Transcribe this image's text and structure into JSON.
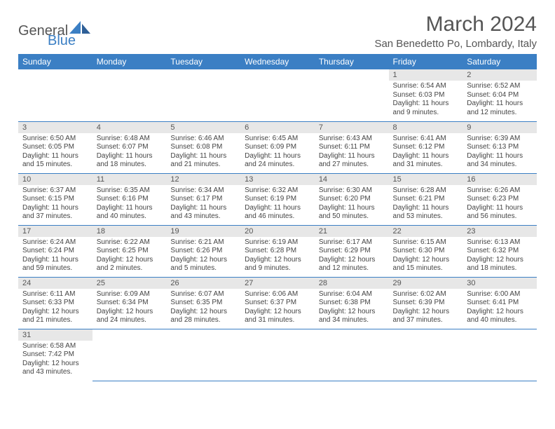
{
  "brand": {
    "name_general": "General",
    "name_blue": "Blue"
  },
  "title": "March 2024",
  "location": "San Benedetto Po, Lombardy, Italy",
  "colors": {
    "header_bg": "#3b7fc4",
    "header_text": "#ffffff",
    "daynum_bg": "#e7e7e7",
    "row_border": "#3b7fc4",
    "text": "#444444"
  },
  "weekdays": [
    "Sunday",
    "Monday",
    "Tuesday",
    "Wednesday",
    "Thursday",
    "Friday",
    "Saturday"
  ],
  "leading_blanks": 5,
  "days": [
    {
      "n": "1",
      "sunrise": "Sunrise: 6:54 AM",
      "sunset": "Sunset: 6:03 PM",
      "daylight": "Daylight: 11 hours and 9 minutes."
    },
    {
      "n": "2",
      "sunrise": "Sunrise: 6:52 AM",
      "sunset": "Sunset: 6:04 PM",
      "daylight": "Daylight: 11 hours and 12 minutes."
    },
    {
      "n": "3",
      "sunrise": "Sunrise: 6:50 AM",
      "sunset": "Sunset: 6:05 PM",
      "daylight": "Daylight: 11 hours and 15 minutes."
    },
    {
      "n": "4",
      "sunrise": "Sunrise: 6:48 AM",
      "sunset": "Sunset: 6:07 PM",
      "daylight": "Daylight: 11 hours and 18 minutes."
    },
    {
      "n": "5",
      "sunrise": "Sunrise: 6:46 AM",
      "sunset": "Sunset: 6:08 PM",
      "daylight": "Daylight: 11 hours and 21 minutes."
    },
    {
      "n": "6",
      "sunrise": "Sunrise: 6:45 AM",
      "sunset": "Sunset: 6:09 PM",
      "daylight": "Daylight: 11 hours and 24 minutes."
    },
    {
      "n": "7",
      "sunrise": "Sunrise: 6:43 AM",
      "sunset": "Sunset: 6:11 PM",
      "daylight": "Daylight: 11 hours and 27 minutes."
    },
    {
      "n": "8",
      "sunrise": "Sunrise: 6:41 AM",
      "sunset": "Sunset: 6:12 PM",
      "daylight": "Daylight: 11 hours and 31 minutes."
    },
    {
      "n": "9",
      "sunrise": "Sunrise: 6:39 AM",
      "sunset": "Sunset: 6:13 PM",
      "daylight": "Daylight: 11 hours and 34 minutes."
    },
    {
      "n": "10",
      "sunrise": "Sunrise: 6:37 AM",
      "sunset": "Sunset: 6:15 PM",
      "daylight": "Daylight: 11 hours and 37 minutes."
    },
    {
      "n": "11",
      "sunrise": "Sunrise: 6:35 AM",
      "sunset": "Sunset: 6:16 PM",
      "daylight": "Daylight: 11 hours and 40 minutes."
    },
    {
      "n": "12",
      "sunrise": "Sunrise: 6:34 AM",
      "sunset": "Sunset: 6:17 PM",
      "daylight": "Daylight: 11 hours and 43 minutes."
    },
    {
      "n": "13",
      "sunrise": "Sunrise: 6:32 AM",
      "sunset": "Sunset: 6:19 PM",
      "daylight": "Daylight: 11 hours and 46 minutes."
    },
    {
      "n": "14",
      "sunrise": "Sunrise: 6:30 AM",
      "sunset": "Sunset: 6:20 PM",
      "daylight": "Daylight: 11 hours and 50 minutes."
    },
    {
      "n": "15",
      "sunrise": "Sunrise: 6:28 AM",
      "sunset": "Sunset: 6:21 PM",
      "daylight": "Daylight: 11 hours and 53 minutes."
    },
    {
      "n": "16",
      "sunrise": "Sunrise: 6:26 AM",
      "sunset": "Sunset: 6:23 PM",
      "daylight": "Daylight: 11 hours and 56 minutes."
    },
    {
      "n": "17",
      "sunrise": "Sunrise: 6:24 AM",
      "sunset": "Sunset: 6:24 PM",
      "daylight": "Daylight: 11 hours and 59 minutes."
    },
    {
      "n": "18",
      "sunrise": "Sunrise: 6:22 AM",
      "sunset": "Sunset: 6:25 PM",
      "daylight": "Daylight: 12 hours and 2 minutes."
    },
    {
      "n": "19",
      "sunrise": "Sunrise: 6:21 AM",
      "sunset": "Sunset: 6:26 PM",
      "daylight": "Daylight: 12 hours and 5 minutes."
    },
    {
      "n": "20",
      "sunrise": "Sunrise: 6:19 AM",
      "sunset": "Sunset: 6:28 PM",
      "daylight": "Daylight: 12 hours and 9 minutes."
    },
    {
      "n": "21",
      "sunrise": "Sunrise: 6:17 AM",
      "sunset": "Sunset: 6:29 PM",
      "daylight": "Daylight: 12 hours and 12 minutes."
    },
    {
      "n": "22",
      "sunrise": "Sunrise: 6:15 AM",
      "sunset": "Sunset: 6:30 PM",
      "daylight": "Daylight: 12 hours and 15 minutes."
    },
    {
      "n": "23",
      "sunrise": "Sunrise: 6:13 AM",
      "sunset": "Sunset: 6:32 PM",
      "daylight": "Daylight: 12 hours and 18 minutes."
    },
    {
      "n": "24",
      "sunrise": "Sunrise: 6:11 AM",
      "sunset": "Sunset: 6:33 PM",
      "daylight": "Daylight: 12 hours and 21 minutes."
    },
    {
      "n": "25",
      "sunrise": "Sunrise: 6:09 AM",
      "sunset": "Sunset: 6:34 PM",
      "daylight": "Daylight: 12 hours and 24 minutes."
    },
    {
      "n": "26",
      "sunrise": "Sunrise: 6:07 AM",
      "sunset": "Sunset: 6:35 PM",
      "daylight": "Daylight: 12 hours and 28 minutes."
    },
    {
      "n": "27",
      "sunrise": "Sunrise: 6:06 AM",
      "sunset": "Sunset: 6:37 PM",
      "daylight": "Daylight: 12 hours and 31 minutes."
    },
    {
      "n": "28",
      "sunrise": "Sunrise: 6:04 AM",
      "sunset": "Sunset: 6:38 PM",
      "daylight": "Daylight: 12 hours and 34 minutes."
    },
    {
      "n": "29",
      "sunrise": "Sunrise: 6:02 AM",
      "sunset": "Sunset: 6:39 PM",
      "daylight": "Daylight: 12 hours and 37 minutes."
    },
    {
      "n": "30",
      "sunrise": "Sunrise: 6:00 AM",
      "sunset": "Sunset: 6:41 PM",
      "daylight": "Daylight: 12 hours and 40 minutes."
    },
    {
      "n": "31",
      "sunrise": "Sunrise: 6:58 AM",
      "sunset": "Sunset: 7:42 PM",
      "daylight": "Daylight: 12 hours and 43 minutes."
    }
  ]
}
